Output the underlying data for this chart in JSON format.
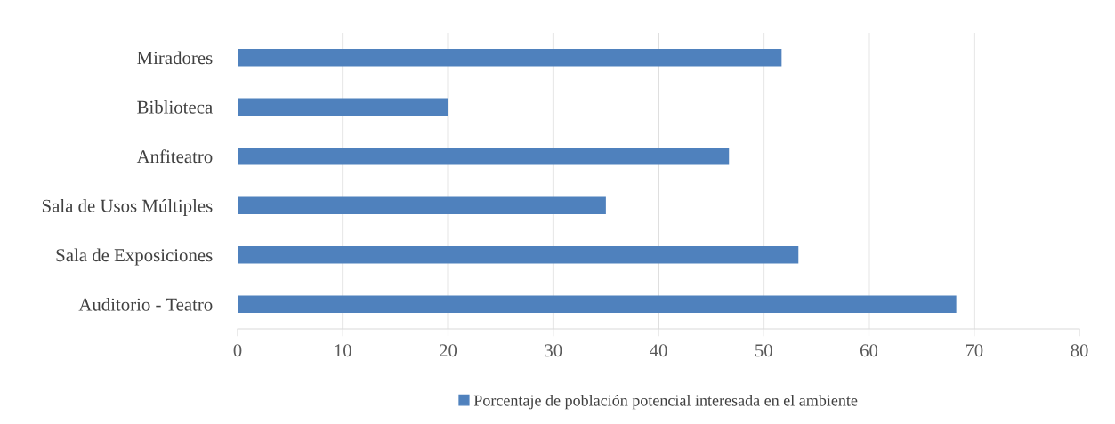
{
  "chart_data": {
    "type": "bar",
    "orientation": "horizontal",
    "categories": [
      "Miradores",
      "Biblioteca",
      "Anfiteatro",
      "Sala de Usos Múltiples",
      "Sala de Exposiciones",
      "Auditorio - Teatro"
    ],
    "series": [
      {
        "name": "Porcentaje de población potencial interesada en el ambiente",
        "color": "#4f81bd",
        "values": [
          51.7,
          20,
          46.7,
          35.0,
          53.3,
          68.3
        ]
      }
    ],
    "xlim": [
      0,
      80
    ],
    "xticks": [
      0,
      10,
      20,
      30,
      40,
      50,
      60,
      70,
      80
    ],
    "grid": "x",
    "legend": "bottom"
  }
}
